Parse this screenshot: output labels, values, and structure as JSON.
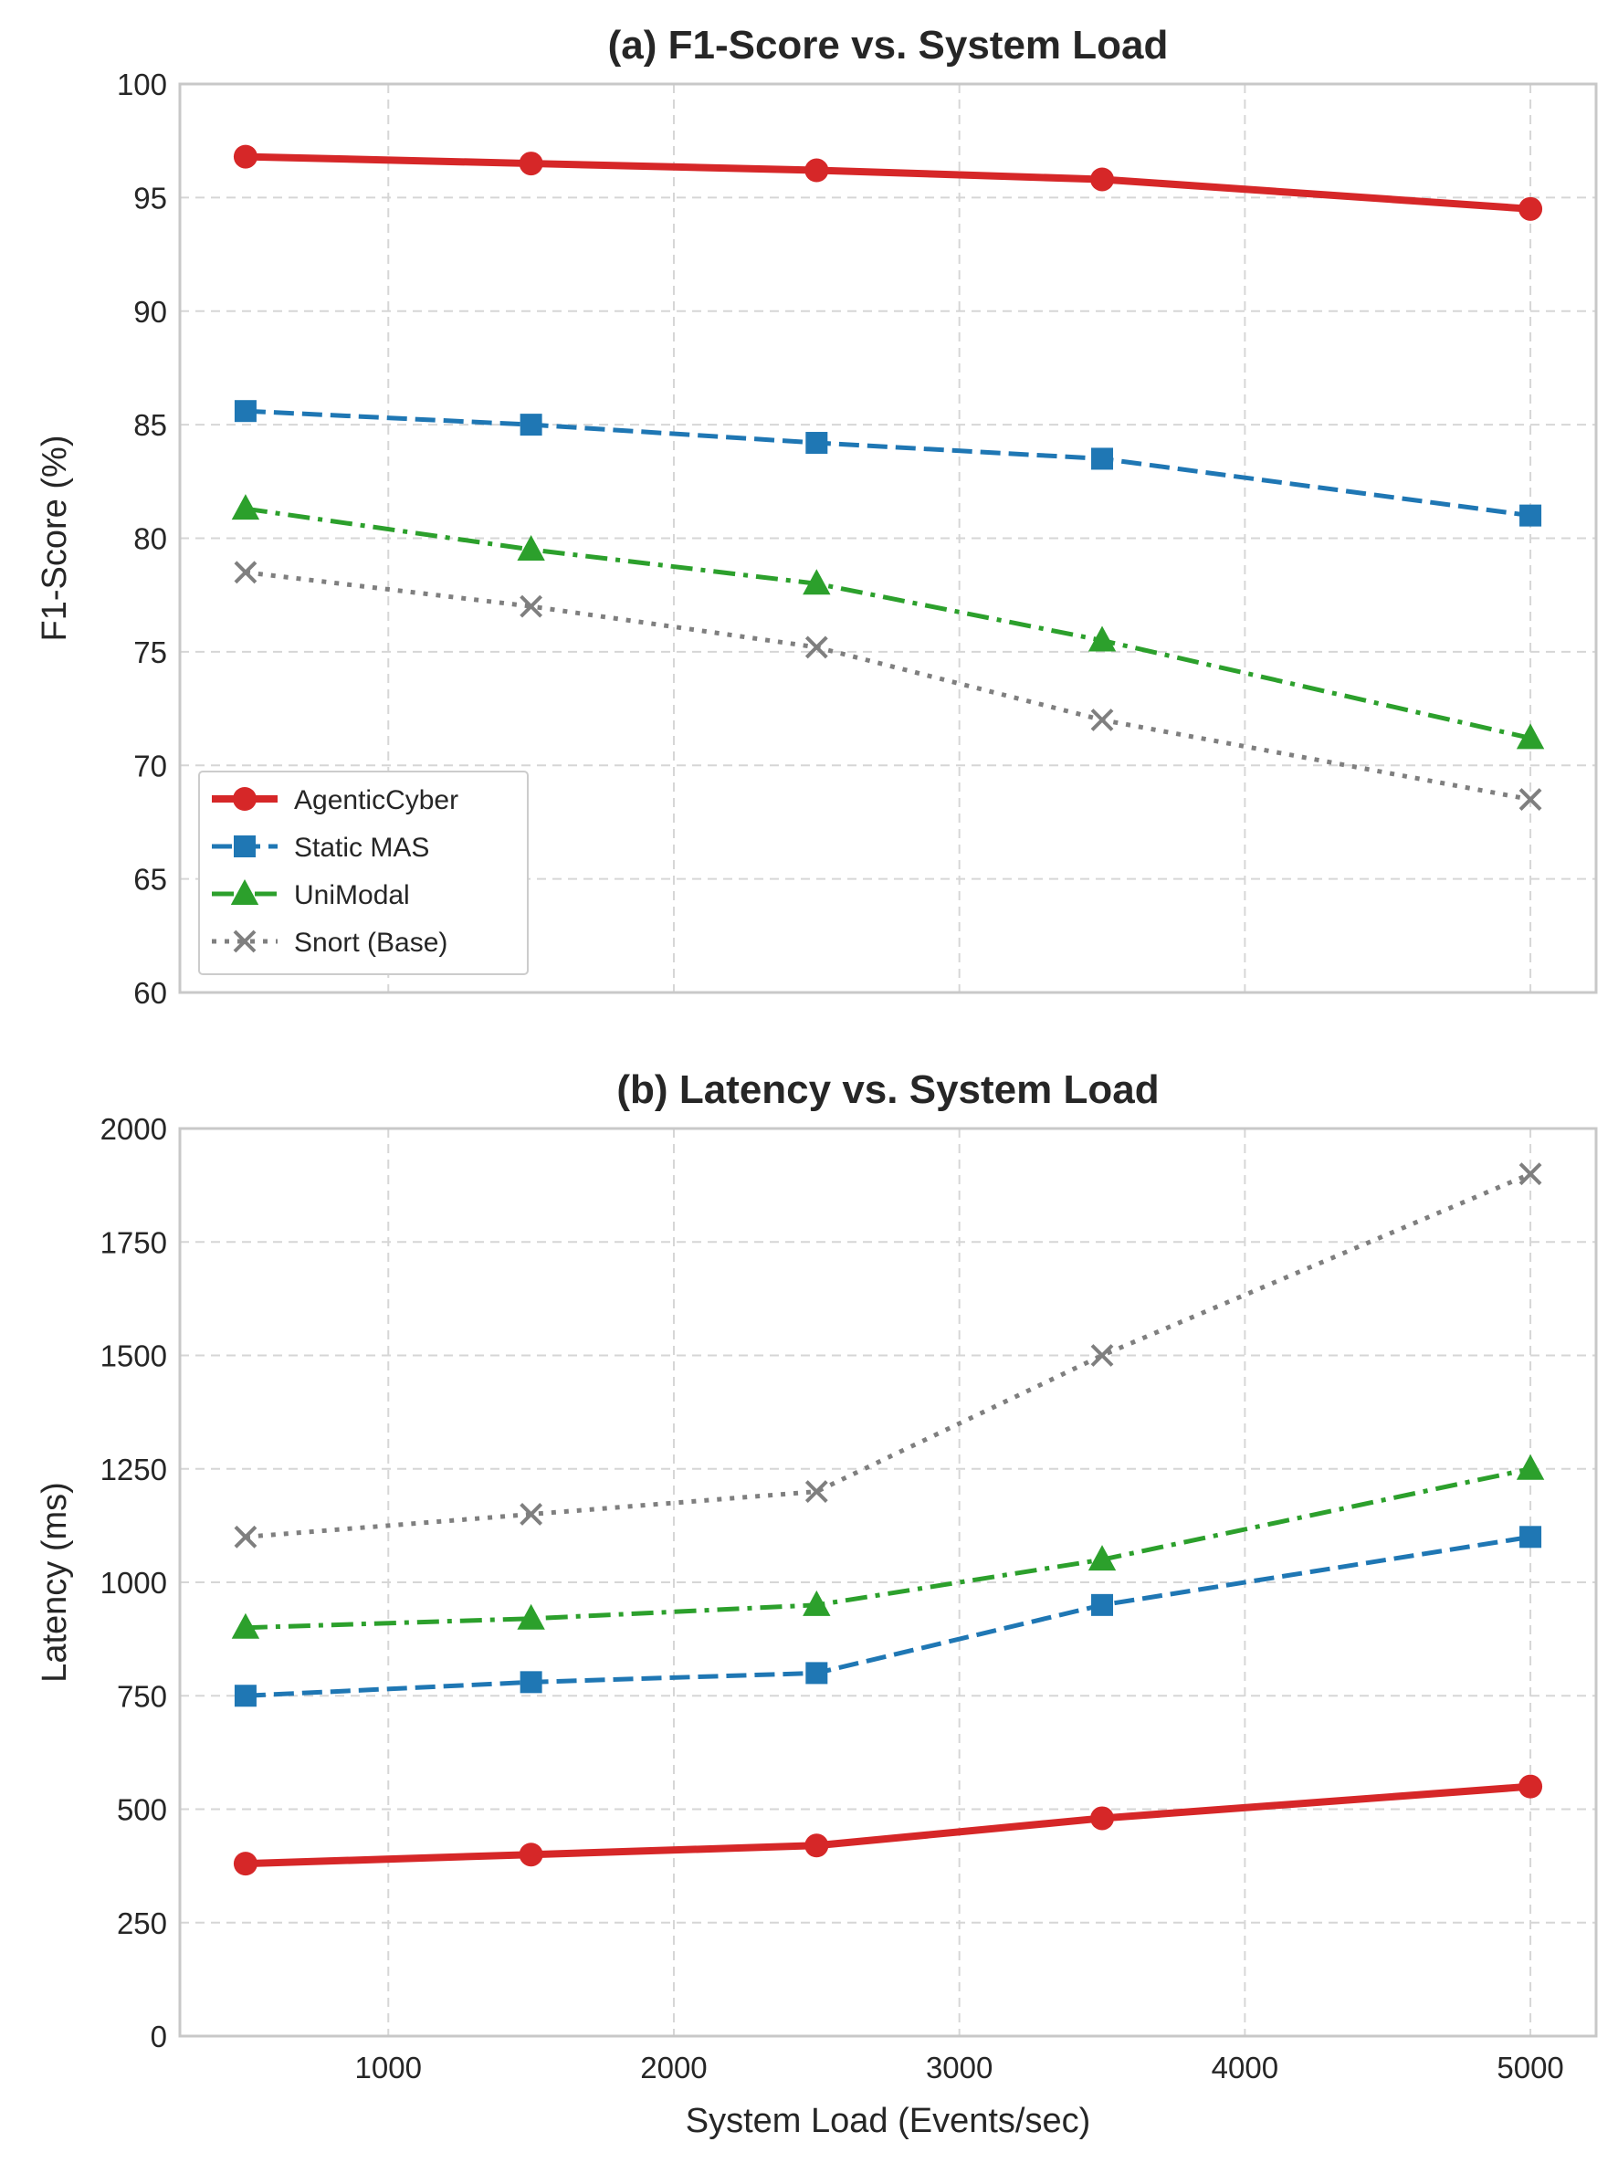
{
  "chart_data": [
    {
      "type": "line",
      "title": "(a) F1-Score vs. System Load",
      "xlabel": "",
      "ylabel": "F1-Score (%)",
      "x": [
        500,
        1500,
        2500,
        3500,
        5000
      ],
      "xlim": [
        270,
        5230
      ],
      "ylim": [
        60,
        100
      ],
      "xticks": [
        1000,
        2000,
        3000,
        4000,
        5000
      ],
      "yticks": [
        60,
        65,
        70,
        75,
        80,
        85,
        90,
        95,
        100
      ],
      "show_xtick_labels": false,
      "grid": true,
      "legend": "lower-left",
      "series": [
        {
          "name": "AgenticCyber",
          "values": [
            96.8,
            96.5,
            96.2,
            95.8,
            94.5
          ],
          "color": "#d62728",
          "marker": "circle",
          "linestyle": "solid"
        },
        {
          "name": "Static MAS",
          "values": [
            85.6,
            85.0,
            84.2,
            83.5,
            81.0
          ],
          "color": "#1f77b4",
          "marker": "square",
          "linestyle": "dashed"
        },
        {
          "name": "UniModal",
          "values": [
            81.3,
            79.5,
            78.0,
            75.5,
            71.2
          ],
          "color": "#2ca02c",
          "marker": "triangle",
          "linestyle": "dashdot"
        },
        {
          "name": "Snort (Base)",
          "values": [
            78.5,
            77.0,
            75.2,
            72.0,
            68.5
          ],
          "color": "#7f7f7f",
          "marker": "x",
          "linestyle": "dotted"
        }
      ]
    },
    {
      "type": "line",
      "title": "(b) Latency vs. System Load",
      "xlabel": "System Load (Events/sec)",
      "ylabel": "Latency (ms)",
      "x": [
        500,
        1500,
        2500,
        3500,
        5000
      ],
      "xlim": [
        270,
        5230
      ],
      "ylim": [
        0,
        2000
      ],
      "xticks": [
        1000,
        2000,
        3000,
        4000,
        5000
      ],
      "yticks": [
        0,
        250,
        500,
        750,
        1000,
        1250,
        1500,
        1750,
        2000
      ],
      "show_xtick_labels": true,
      "grid": true,
      "legend": "none",
      "series": [
        {
          "name": "AgenticCyber",
          "values": [
            380,
            400,
            420,
            480,
            550
          ],
          "color": "#d62728",
          "marker": "circle",
          "linestyle": "solid"
        },
        {
          "name": "Static MAS",
          "values": [
            750,
            780,
            800,
            950,
            1100
          ],
          "color": "#1f77b4",
          "marker": "square",
          "linestyle": "dashed"
        },
        {
          "name": "UniModal",
          "values": [
            900,
            920,
            950,
            1050,
            1250
          ],
          "color": "#2ca02c",
          "marker": "triangle",
          "linestyle": "dashdot"
        },
        {
          "name": "Snort (Base)",
          "values": [
            1100,
            1150,
            1200,
            1500,
            1900
          ],
          "color": "#7f7f7f",
          "marker": "x",
          "linestyle": "dotted"
        }
      ]
    }
  ]
}
